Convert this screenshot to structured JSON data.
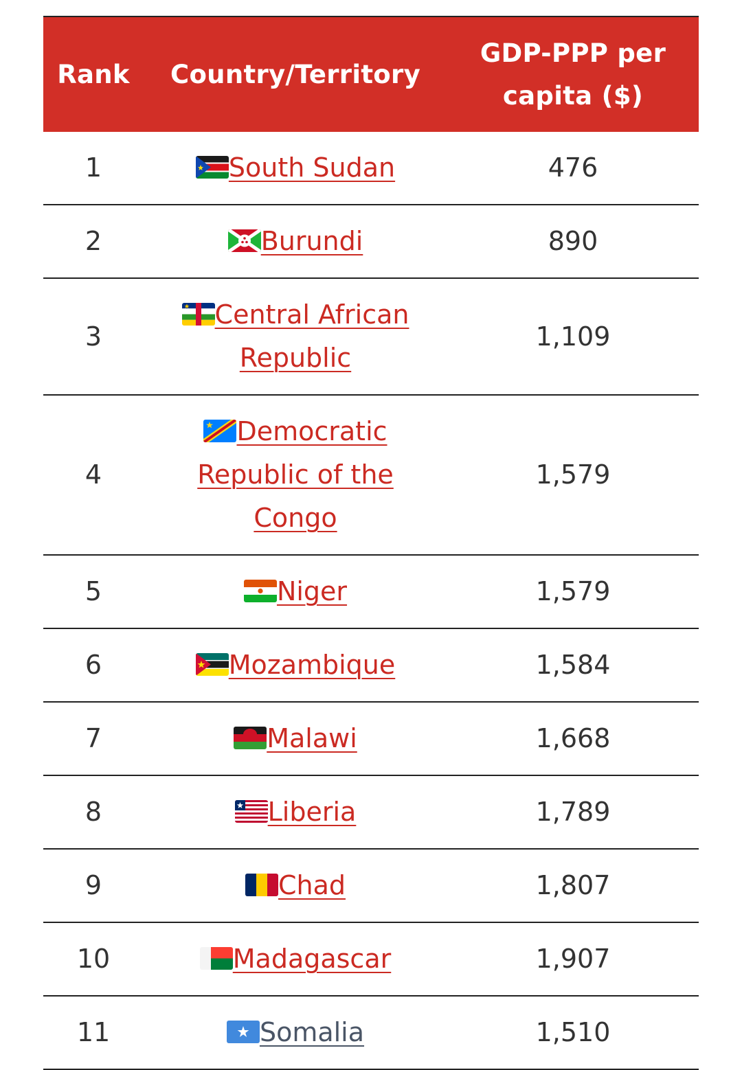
{
  "table": {
    "headers": {
      "rank": "Rank",
      "country": "Country/Territory",
      "gdp": "GDP-PPP per capita ($)"
    },
    "rows": [
      {
        "rank": "1",
        "country": "South Sudan",
        "gdp": "476",
        "flag": "south-sudan-flag-icon"
      },
      {
        "rank": "2",
        "country": "Burundi",
        "gdp": "890",
        "flag": "burundi-flag-icon"
      },
      {
        "rank": "3",
        "country": "Central African Republic",
        "gdp": "1,109",
        "flag": "central-african-republic-flag-icon"
      },
      {
        "rank": "4",
        "country": "Democratic Republic of the Congo",
        "gdp": "1,579",
        "flag": "dr-congo-flag-icon"
      },
      {
        "rank": "5",
        "country": "Niger",
        "gdp": "1,579",
        "flag": "niger-flag-icon"
      },
      {
        "rank": "6",
        "country": "Mozambique",
        "gdp": "1,584",
        "flag": "mozambique-flag-icon"
      },
      {
        "rank": "7",
        "country": "Malawi",
        "gdp": "1,668",
        "flag": "malawi-flag-icon"
      },
      {
        "rank": "8",
        "country": "Liberia",
        "gdp": "1,789",
        "flag": "liberia-flag-icon"
      },
      {
        "rank": "9",
        "country": "Chad",
        "gdp": "1,807",
        "flag": "chad-flag-icon"
      },
      {
        "rank": "10",
        "country": "Madagascar",
        "gdp": "1,907",
        "flag": "madagascar-flag-icon"
      },
      {
        "rank": "11",
        "country": "Somalia",
        "gdp": "1,510",
        "flag": "somalia-flag-icon"
      }
    ]
  },
  "colors": {
    "header_background": "#d22f27",
    "link": "#cb2a22",
    "visited_link": "#4a5566",
    "rule": "#222222"
  }
}
